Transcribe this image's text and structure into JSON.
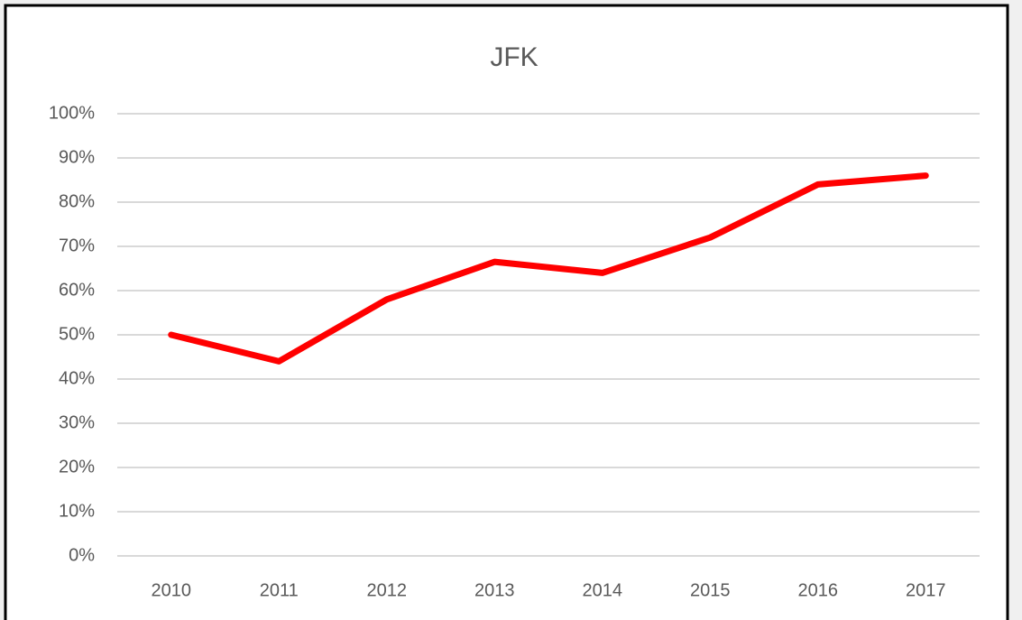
{
  "chart_data": {
    "type": "line",
    "title": "JFK",
    "categories": [
      "2010",
      "2011",
      "2012",
      "2013",
      "2014",
      "2015",
      "2016",
      "2017"
    ],
    "series": [
      {
        "name": "JFK",
        "color": "#ff0000",
        "values": [
          50,
          44,
          58,
          66.5,
          64,
          72,
          84,
          86
        ]
      }
    ],
    "ylim": [
      0,
      100
    ],
    "yticks": [
      {
        "value": 0,
        "label": "0%"
      },
      {
        "value": 10,
        "label": "10%"
      },
      {
        "value": 20,
        "label": "20%"
      },
      {
        "value": 30,
        "label": "30%"
      },
      {
        "value": 40,
        "label": "40%"
      },
      {
        "value": 50,
        "label": "50%"
      },
      {
        "value": 60,
        "label": "60%"
      },
      {
        "value": 70,
        "label": "70%"
      },
      {
        "value": 80,
        "label": "80%"
      },
      {
        "value": 90,
        "label": "90%"
      },
      {
        "value": 100,
        "label": "100%"
      }
    ],
    "grid": true
  }
}
